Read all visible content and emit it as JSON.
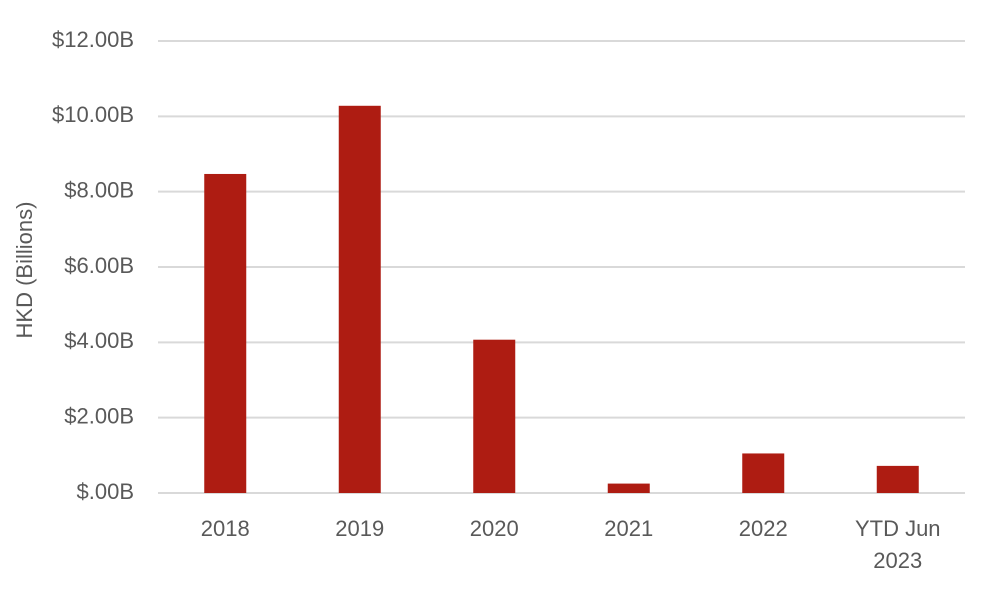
{
  "chart_data": {
    "type": "bar",
    "y_label": "HKD (Billions)",
    "categories": [
      "2018",
      "2019",
      "2020",
      "2021",
      "2022",
      "YTD Jun 2023"
    ],
    "values": [
      8.47,
      10.28,
      4.07,
      0.25,
      1.05,
      0.72
    ],
    "color": "#ae1c12",
    "ylim": [
      0,
      12
    ],
    "yticks": [
      {
        "value": 0,
        "label": "$.00B"
      },
      {
        "value": 2,
        "label": "$2.00B"
      },
      {
        "value": 4,
        "label": "$4.00B"
      },
      {
        "value": 6,
        "label": "$6.00B"
      },
      {
        "value": 8,
        "label": "$8.00B"
      },
      {
        "value": 10,
        "label": "$10.00B"
      },
      {
        "value": 12,
        "label": "$12.00B"
      }
    ],
    "grid": true
  }
}
